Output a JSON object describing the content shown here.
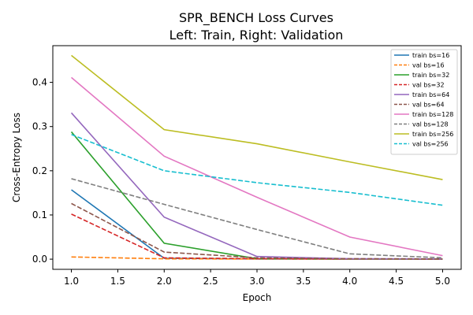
{
  "chart_data": {
    "type": "line",
    "title": "SPR_BENCH Loss Curves",
    "subtitle": "Left: Train, Right: Validation",
    "xlabel": "Epoch",
    "ylabel": "Cross-Entropy Loss",
    "xlim": [
      0.8,
      5.2
    ],
    "ylim": [
      -0.023,
      0.483
    ],
    "x": [
      1,
      2,
      3,
      4,
      5
    ],
    "xticks": [
      "1.0",
      "1.5",
      "2.0",
      "2.5",
      "3.0",
      "3.5",
      "4.0",
      "4.5",
      "5.0"
    ],
    "yticks": [
      "0.0",
      "0.1",
      "0.2",
      "0.3",
      "0.4"
    ],
    "grid": false,
    "legend_position": "top-right",
    "series": [
      {
        "name": "train bs=16",
        "color": "#1f77b4",
        "dash": "solid",
        "values": [
          0.157,
          0.002,
          0.0005,
          0.0003,
          0.0002
        ]
      },
      {
        "name": "val bs=16",
        "color": "#ff7f0e",
        "dash": "dashed",
        "values": [
          0.005,
          0.0008,
          0.0004,
          0.0003,
          0.0002
        ]
      },
      {
        "name": "train bs=32",
        "color": "#2ca02c",
        "dash": "solid",
        "values": [
          0.288,
          0.036,
          0.001,
          0.0005,
          0.0003
        ]
      },
      {
        "name": "val bs=32",
        "color": "#d62728",
        "dash": "dashed",
        "values": [
          0.102,
          0.003,
          0.001,
          0.0005,
          0.0003
        ]
      },
      {
        "name": "train bs=64",
        "color": "#9467bd",
        "dash": "solid",
        "values": [
          0.331,
          0.095,
          0.006,
          0.001,
          0.0005
        ]
      },
      {
        "name": "val bs=64",
        "color": "#8c564b",
        "dash": "dashed",
        "values": [
          0.126,
          0.016,
          0.003,
          0.001,
          0.0005
        ]
      },
      {
        "name": "train bs=128",
        "color": "#e377c2",
        "dash": "solid",
        "values": [
          0.411,
          0.233,
          0.14,
          0.05,
          0.008
        ]
      },
      {
        "name": "val bs=128",
        "color": "#7f7f7f",
        "dash": "dashed",
        "values": [
          0.182,
          0.124,
          0.067,
          0.012,
          0.003
        ]
      },
      {
        "name": "train bs=256",
        "color": "#bcbd22",
        "dash": "solid",
        "values": [
          0.461,
          0.293,
          0.261,
          0.22,
          0.18
        ]
      },
      {
        "name": "val bs=256",
        "color": "#17becf",
        "dash": "dashed",
        "values": [
          0.282,
          0.2,
          0.173,
          0.151,
          0.122
        ]
      }
    ]
  }
}
